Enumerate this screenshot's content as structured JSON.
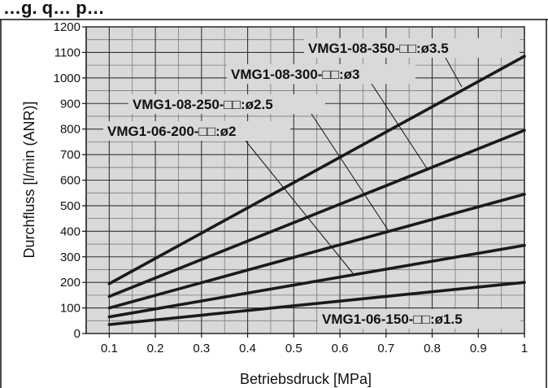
{
  "page": {
    "title": "…g. q… p…"
  },
  "chart_data": {
    "type": "line",
    "title": "",
    "xlabel": "Betriebsdruck [MPa]",
    "ylabel": "Durchfluss [l/min (ANR)]",
    "xlim": [
      0.05,
      1.0
    ],
    "ylim": [
      0,
      1200
    ],
    "x_ticks": [
      0.1,
      0.2,
      0.3,
      0.4,
      0.5,
      0.6,
      0.7,
      0.8,
      0.9,
      1
    ],
    "x_tick_labels": [
      "0.1",
      "0.2",
      "0.3",
      "0.4",
      "0.5",
      "0.6",
      "0.7",
      "0.8",
      "0.9",
      "1"
    ],
    "y_ticks": [
      0,
      100,
      200,
      300,
      400,
      500,
      600,
      700,
      800,
      900,
      1000,
      1100,
      1200
    ],
    "y_tick_labels": [
      "0",
      "100",
      "200",
      "300",
      "400",
      "500",
      "600",
      "700",
      "800",
      "900",
      "1000",
      "1100",
      "1200"
    ],
    "grid": true,
    "x_minor_per_major": 2,
    "y_minor_per_major": 2,
    "colors": {
      "background": "#d9d9d9",
      "grid_major": "#333333",
      "grid_minor": "#7a7a7a",
      "series": "#1a1a1a"
    },
    "series": [
      {
        "name": "VMG1-08-350-□□:ø3.5",
        "x": [
          0.1,
          1.0
        ],
        "values": [
          195,
          1085
        ]
      },
      {
        "name": "VMG1-08-300-□□:ø3",
        "x": [
          0.1,
          1.0
        ],
        "values": [
          145,
          795
        ]
      },
      {
        "name": "VMG1-08-250-□□:ø2.5",
        "x": [
          0.1,
          1.0
        ],
        "values": [
          100,
          545
        ]
      },
      {
        "name": "VMG1-06-200-□□:ø2",
        "x": [
          0.1,
          1.0
        ],
        "values": [
          65,
          345
        ]
      },
      {
        "name": "VMG1-06-150-□□:ø1.5",
        "x": [
          0.1,
          1.0
        ],
        "values": [
          35,
          200
        ]
      }
    ]
  }
}
